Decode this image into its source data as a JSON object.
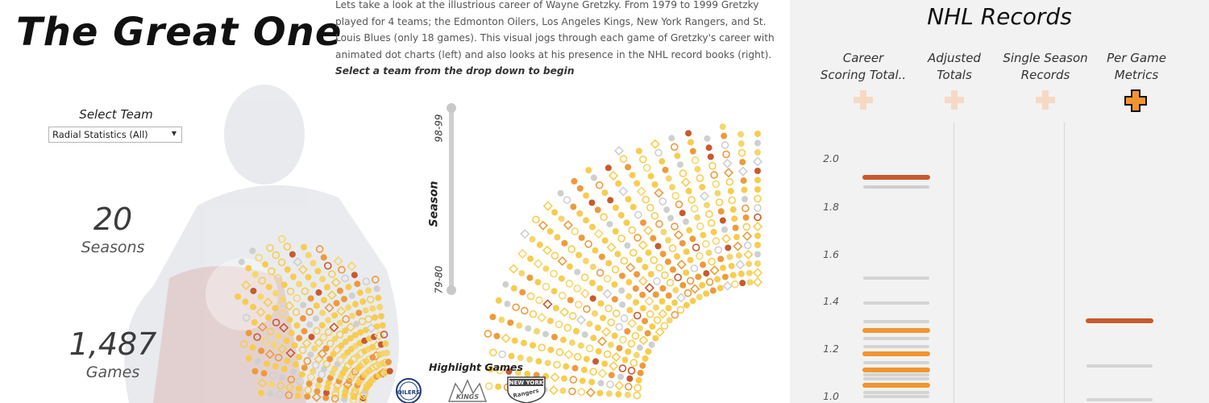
{
  "header": {
    "title": "The Great One",
    "description": "Lets take a look at the illustrious career of Wayne Gretzky. From 1979 to 1999 Gretzky played for 4 teams; the Edmonton Oilers, Los Angeles Kings, New York Rangers, and St. Louis Blues (only 18 games). This visual jogs through each game of Gretzky's career with animated dot charts (left) and also looks at his presence in the NHL record books (right).",
    "cta": "Select a team from the drop down to begin"
  },
  "filter": {
    "label": "Select Team",
    "selected": "Radial Statistics (All)"
  },
  "stats": [
    {
      "value": "20",
      "label": "Seasons"
    },
    {
      "value": "1,487",
      "label": "Games"
    }
  ],
  "season_slider": {
    "title": "Season",
    "start": "79-80",
    "end": "98-99"
  },
  "highlight": {
    "label": "Highlight Games",
    "teams": [
      {
        "name": "Edmonton Oilers",
        "logo_text": "OILERS",
        "color": "#1f3d7a"
      },
      {
        "name": "Los Angeles Kings",
        "logo_text": "KINGS",
        "color": "#777777"
      },
      {
        "name": "New York Rangers",
        "logo_text": "NEW YORK",
        "color": "#444444"
      }
    ]
  },
  "records_panel": {
    "title": "NHL Records",
    "columns": [
      {
        "label_line1": "Career",
        "label_line2": "Scoring Total..",
        "active": false
      },
      {
        "label_line1": "Adjusted",
        "label_line2": "Totals",
        "active": false
      },
      {
        "label_line1": "Single Season",
        "label_line2": "Records",
        "active": false
      },
      {
        "label_line1": "Per Game",
        "label_line2": "Metrics",
        "active": true
      }
    ],
    "y_ticks": [
      "2.0",
      "1.8",
      "1.6",
      "1.4",
      "1.2",
      "1.0"
    ],
    "accent_color": "#f0952e",
    "highlight_color": "#c85a2e"
  },
  "colors": {
    "dot_yellow": "#f7cc4f",
    "dot_light_yellow": "#f5d66e",
    "dot_orange": "#ee9a3c",
    "dot_red": "#c85a2e",
    "dot_grey": "#cfcfcf"
  }
}
